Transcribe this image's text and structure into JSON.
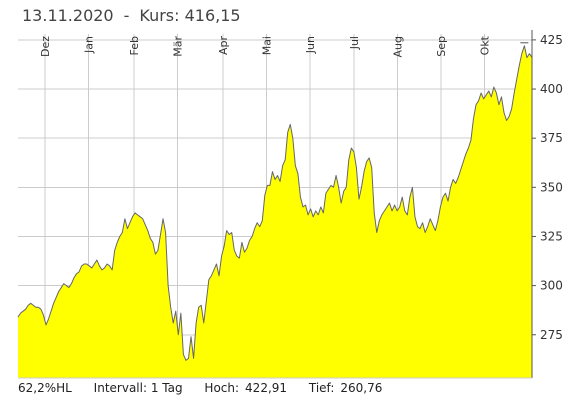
{
  "header": {
    "date": "13.11.2020",
    "separator": "-",
    "price_label": "Kurs: 416,15"
  },
  "footer": {
    "hl": "62,2%HL",
    "interval": "Intervall: 1 Tag",
    "high_label": "Hoch:",
    "high_value": "422,91",
    "low_label": "Tief:",
    "low_value": "260,76"
  },
  "colors": {
    "fill": "#ffff00",
    "line": "#666666",
    "grid": "#cccccc",
    "axis": "#555555"
  },
  "chart_data": {
    "type": "area",
    "title": "",
    "xlabel": "",
    "ylabel": "",
    "ylim": [
      253,
      428
    ],
    "xlim": [
      0,
      248
    ],
    "y_ticks": [
      275,
      300,
      325,
      350,
      375,
      400,
      425
    ],
    "y_tick_labels": [
      "275",
      "300",
      "325",
      "350",
      "375",
      "400",
      "425"
    ],
    "month_labels": [
      "Dez",
      "Jan",
      "Feb",
      "Mär",
      "Apr",
      "Mai",
      "Jun",
      "Jul",
      "Aug",
      "Sep",
      "Okt"
    ],
    "month_positions": [
      13,
      34,
      56,
      77,
      99,
      120,
      141,
      162,
      183,
      204,
      225
    ],
    "grid": true,
    "series": [
      {
        "values": [
          284,
          286,
          287,
          288,
          290,
          291,
          290,
          289,
          289,
          288,
          285,
          280,
          283,
          287,
          291,
          294,
          297,
          299,
          301,
          300,
          299,
          301,
          304,
          306,
          307,
          310,
          311,
          311,
          310,
          309,
          311,
          313,
          310,
          308,
          309,
          311,
          310,
          308,
          318,
          322,
          325,
          327,
          334,
          329,
          332,
          335,
          337,
          336,
          335,
          334,
          331,
          328,
          324,
          322,
          316,
          318,
          326,
          334,
          327,
          300,
          289,
          281,
          287,
          275,
          286,
          265,
          262,
          263,
          274,
          263,
          281,
          289,
          290,
          281,
          292,
          303,
          305,
          308,
          311,
          305,
          315,
          320,
          328,
          326,
          327,
          318,
          315,
          314,
          322,
          317,
          319,
          323,
          325,
          329,
          332,
          330,
          333,
          346,
          351,
          351,
          358,
          354,
          356,
          353,
          361,
          364,
          378,
          382,
          375,
          361,
          357,
          345,
          340,
          341,
          336,
          339,
          335,
          338,
          336,
          340,
          337,
          347,
          349,
          351,
          350,
          356,
          350,
          342,
          348,
          350,
          364,
          370,
          368,
          360,
          344,
          350,
          358,
          363,
          365,
          360,
          337,
          327,
          333,
          336,
          338,
          340,
          342,
          338,
          341,
          338,
          340,
          345,
          338,
          336,
          345,
          350,
          335,
          330,
          329,
          332,
          327,
          330,
          334,
          331,
          328,
          333,
          340,
          345,
          347,
          343,
          350,
          354,
          352,
          355,
          359,
          363,
          367,
          370,
          374,
          385,
          392,
          394,
          398,
          395,
          397,
          399,
          396,
          401,
          398,
          392,
          396,
          388,
          384,
          386,
          390,
          398,
          405,
          412,
          418,
          422,
          416,
          418,
          416
        ]
      }
    ]
  }
}
